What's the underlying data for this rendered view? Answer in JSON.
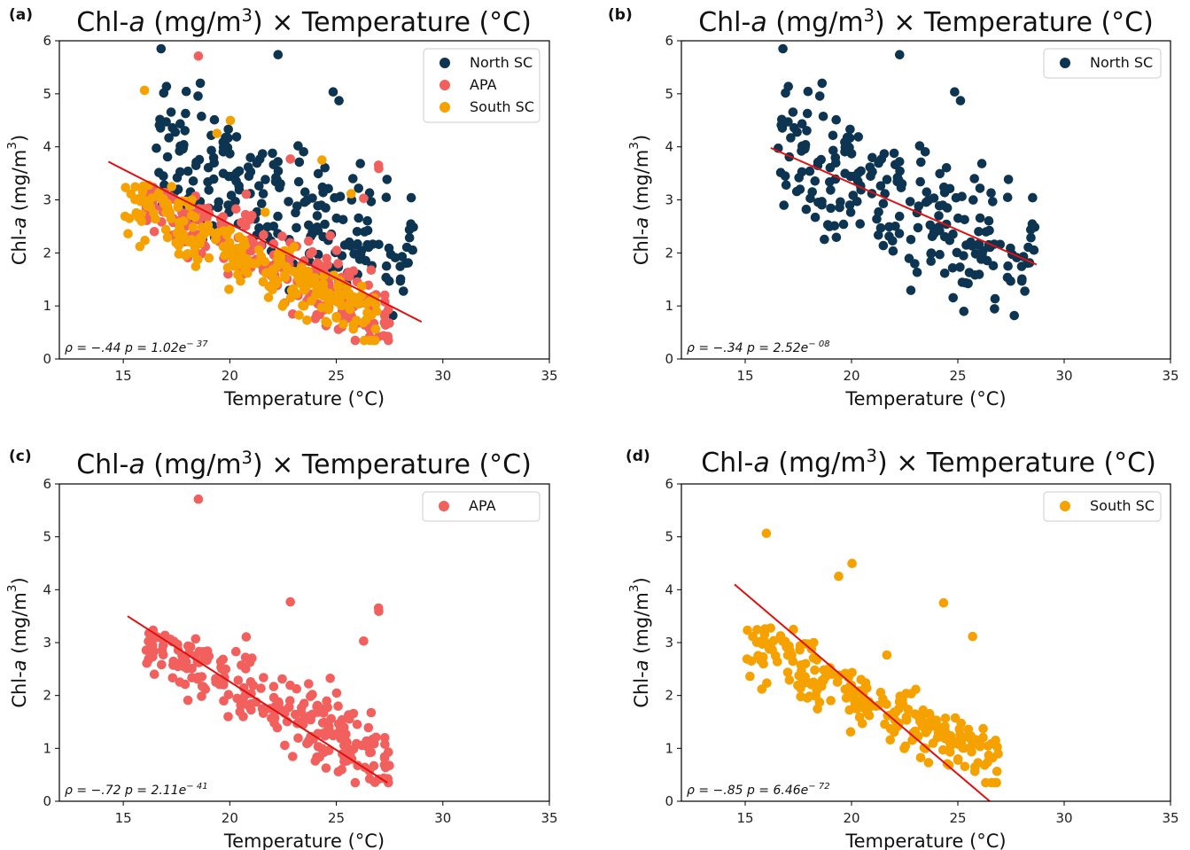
{
  "figure": {
    "colors": {
      "North SC": "#0d3450",
      "APA": "#f2605e",
      "South SC": "#f5a200",
      "fit": "#e01010"
    }
  },
  "chart_data": [
    {
      "panel": "(a)",
      "type": "scatter",
      "title_main": "Chl-a (mg/m3) × Temperature (°C)",
      "title_parts": {
        "pre": "Chl-",
        "var": "a",
        "mid": " (mg/m",
        "sup": "3",
        "post": ") × Temperature (°C)"
      },
      "xlabel": "Temperature (°C)",
      "ylabel_parts": {
        "pre": "Chl-",
        "var": "a",
        "mid": " (mg/m",
        "sup": "3",
        "post": ")"
      },
      "xlim": [
        12,
        35
      ],
      "ylim": [
        0,
        6
      ],
      "xticks": [
        15,
        20,
        25,
        30,
        35
      ],
      "yticks": [
        0,
        1,
        2,
        3,
        4,
        5,
        6
      ],
      "legend": [
        "North SC",
        "APA",
        "South SC"
      ],
      "legend_position": "top-right",
      "stat_rho": "ρ = −.44",
      "stat_p": "p = 1.02e",
      "stat_exp": "− 37",
      "fit": {
        "x": [
          14.3,
          29.0
        ],
        "y": [
          3.72,
          0.7
        ]
      },
      "series": [
        {
          "name": "North SC",
          "region": {
            "x": [
              16.5,
              28.7
            ],
            "y_center_start": 3.9,
            "y_center_end": 1.9,
            "spread": 0.9
          },
          "n": 230
        },
        {
          "name": "APA",
          "region": {
            "x": [
              16.0,
              27.5
            ],
            "y_center_start": 3.0,
            "y_center_end": 0.8,
            "spread": 0.55
          },
          "n": 240
        },
        {
          "name": "South SC",
          "region": {
            "x": [
              15.0,
              27.0
            ],
            "y_center_start": 3.0,
            "y_center_end": 0.65,
            "spread": 0.5
          },
          "n": 240
        }
      ]
    },
    {
      "panel": "(b)",
      "type": "scatter",
      "title_main": "Chl-a (mg/m3) × Temperature (°C)",
      "title_parts": {
        "pre": "Chl-",
        "var": "a",
        "mid": " (mg/m",
        "sup": "3",
        "post": ") × Temperature (°C)"
      },
      "xlabel": "Temperature (°C)",
      "ylabel_parts": {
        "pre": "Chl-",
        "var": "a",
        "mid": " (mg/m",
        "sup": "3",
        "post": ")"
      },
      "xlim": [
        12,
        35
      ],
      "ylim": [
        0,
        6
      ],
      "xticks": [
        15,
        20,
        25,
        30,
        35
      ],
      "yticks": [
        0,
        1,
        2,
        3,
        4,
        5,
        6
      ],
      "legend": [
        "North SC"
      ],
      "legend_position": "top-right",
      "stat_rho": "ρ = −.34",
      "stat_p": "p = 2.52e",
      "stat_exp": "− 08",
      "fit": {
        "x": [
          16.2,
          28.7
        ],
        "y": [
          3.98,
          1.78
        ]
      },
      "series": [
        {
          "name": "North SC",
          "region": {
            "x": [
              16.5,
              28.7
            ],
            "y_center_start": 3.9,
            "y_center_end": 1.9,
            "spread": 0.9
          },
          "n": 230
        }
      ]
    },
    {
      "panel": "(c)",
      "type": "scatter",
      "title_main": "Chl-a (mg/m3) × Temperature (°C)",
      "title_parts": {
        "pre": "Chl-",
        "var": "a",
        "mid": " (mg/m",
        "sup": "3",
        "post": ") × Temperature (°C)"
      },
      "xlabel": "Temperature (°C)",
      "ylabel_parts": {
        "pre": "Chl-",
        "var": "a",
        "mid": " (mg/m",
        "sup": "3",
        "post": ")"
      },
      "xlim": [
        12,
        35
      ],
      "ylim": [
        0,
        6
      ],
      "xticks": [
        15,
        20,
        25,
        30,
        35
      ],
      "yticks": [
        0,
        1,
        2,
        3,
        4,
        5,
        6
      ],
      "legend": [
        "APA"
      ],
      "legend_position": "top-right",
      "stat_rho": "ρ = −.72",
      "stat_p": "p = 2.11e",
      "stat_exp": "− 41",
      "fit": {
        "x": [
          15.2,
          27.4
        ],
        "y": [
          3.5,
          0.35
        ]
      },
      "series": [
        {
          "name": "APA",
          "region": {
            "x": [
              16.0,
              27.5
            ],
            "y_center_start": 3.0,
            "y_center_end": 0.8,
            "spread": 0.55
          },
          "n": 240
        }
      ]
    },
    {
      "panel": "(d)",
      "type": "scatter",
      "title_main": "Chl-a (mg/m3) × Temperature (°C)",
      "title_parts": {
        "pre": "Chl-",
        "var": "a",
        "mid": " (mg/m",
        "sup": "3",
        "post": ") × Temperature (°C)"
      },
      "xlabel": "Temperature (°C)",
      "ylabel_parts": {
        "pre": "Chl-",
        "var": "a",
        "mid": " (mg/m",
        "sup": "3",
        "post": ")"
      },
      "xlim": [
        12,
        35
      ],
      "ylim": [
        0,
        6
      ],
      "xticks": [
        15,
        20,
        25,
        30,
        35
      ],
      "yticks": [
        0,
        1,
        2,
        3,
        4,
        5,
        6
      ],
      "legend": [
        "South SC"
      ],
      "legend_position": "top-right",
      "stat_rho": "ρ = −.85",
      "stat_p": "p = 6.46e",
      "stat_exp": "− 72",
      "fit": {
        "x": [
          14.5,
          26.5
        ],
        "y": [
          4.1,
          0.0
        ]
      },
      "series": [
        {
          "name": "South SC",
          "region": {
            "x": [
              15.0,
              27.0
            ],
            "y_center_start": 3.0,
            "y_center_end": 0.65,
            "spread": 0.5
          },
          "n": 240
        }
      ]
    }
  ]
}
